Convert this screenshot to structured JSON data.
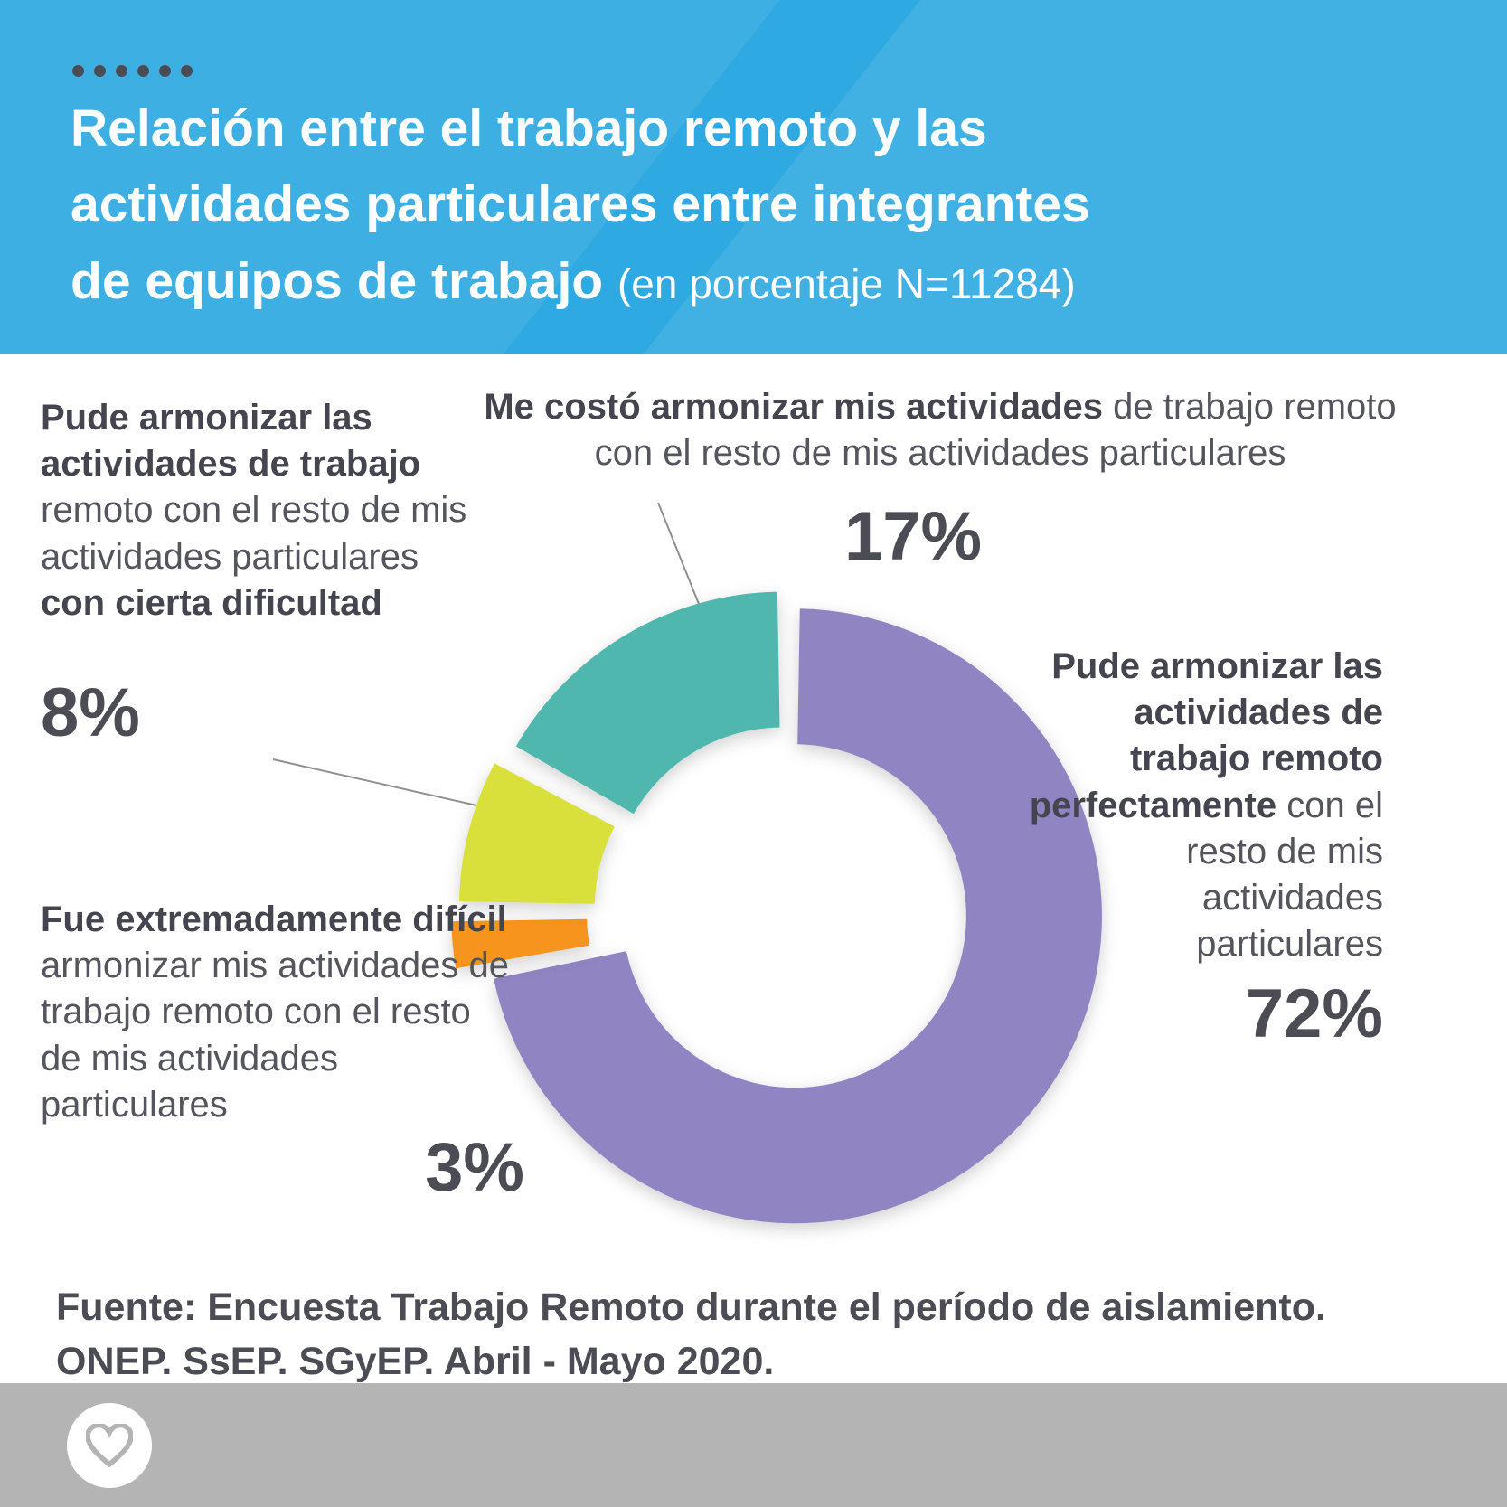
{
  "header": {
    "line1": "Relación entre el trabajo remoto y las",
    "line2": "actividades particulares entre integrantes",
    "line3": "de equipos de trabajo ",
    "suffix": "(en porcentaje N=11284)",
    "bg_color": "#2fa9e1"
  },
  "chart_data": {
    "type": "pie",
    "subtype": "donut",
    "title": "Relación entre el trabajo remoto y las actividades particulares entre integrantes de equipos de trabajo",
    "subtitle": "(en porcentaje N=11284)",
    "n": 11284,
    "unit": "percent",
    "legend_position": "around",
    "segments": [
      {
        "label": "Pude armonizar las actividades de trabajo remoto perfectamente con el resto de mis actividades particulares",
        "value": 72,
        "color": "#9184c3"
      },
      {
        "label": "Fue extremadamente difícil armonizar mis actividades de trabajo remoto con el resto de mis actividades particulares",
        "value": 3,
        "color": "#f7941d"
      },
      {
        "label": "Pude armonizar las actividades de trabajo remoto con el resto de mis actividades particulares con cierta dificultad",
        "value": 8,
        "color": "#d9e03c"
      },
      {
        "label": "Me costó armonizar mis actividades de trabajo remoto con el resto de mis actividades particulares",
        "value": 17,
        "color": "#4fb7ad"
      }
    ]
  },
  "labels": {
    "difficulty": {
      "runs": [
        {
          "b": 1,
          "t": "Pude armonizar las actividades de trabajo "
        },
        {
          "b": 0,
          "t": "remoto con el resto de mis actividades particulares "
        },
        {
          "b": 1,
          "t": "con cierta dificultad"
        }
      ],
      "pct": "8%"
    },
    "costo": {
      "runs": [
        {
          "b": 1,
          "t": "Me costó armonizar mis actividades"
        },
        {
          "b": 0,
          "t": " de trabajo remoto con el resto de mis actividades particulares"
        }
      ],
      "pct": "17%"
    },
    "perfect": {
      "runs": [
        {
          "b": 1,
          "t": "Pude armonizar las actividades de trabajo remoto perfectamente "
        },
        {
          "b": 0,
          "t": "con el resto de mis actividades particulares"
        }
      ],
      "pct": "72%"
    },
    "extreme": {
      "runs": [
        {
          "b": 1,
          "t": "Fue extremadamente difícil "
        },
        {
          "b": 0,
          "t": "armonizar mis actividades de trabajo remoto con el resto de mis actividades particulares"
        }
      ],
      "pct": "3%"
    }
  },
  "footer": {
    "source": "Fuente: Encuesta Trabajo Remoto durante el período de aislamiento. ONEP. SsEP. SGyEP. Abril - Mayo 2020."
  },
  "icons": {
    "heart": "heart-icon"
  },
  "colors": {
    "header_blue": "#2fa9e1",
    "text_dark": "#4c4c55",
    "bar_gray": "#b4b4b4",
    "purple": "#9184c3",
    "orange": "#f7941d",
    "yellow": "#d9e03c",
    "teal": "#4fb7ad"
  }
}
